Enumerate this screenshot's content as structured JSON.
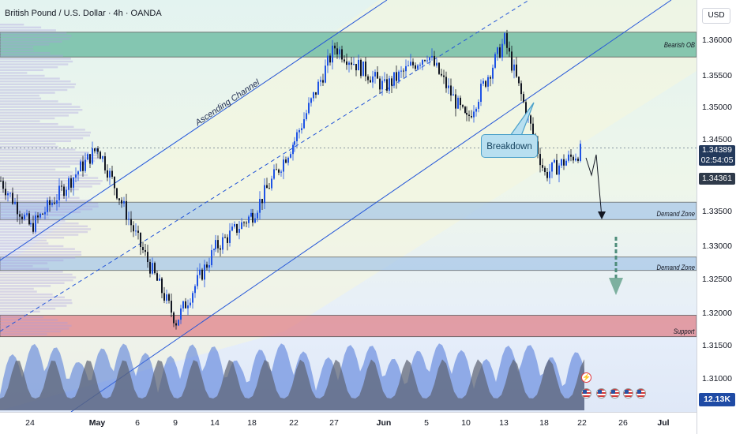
{
  "header": {
    "title": "British Pound / U.S. Dollar · 4h · OANDA"
  },
  "price_scale": {
    "currency": "USD",
    "ticks": [
      "1.36000",
      "1.35500",
      "1.35000",
      "1.34500",
      "1.33500",
      "1.33000",
      "1.32500",
      "1.32000",
      "1.31500",
      "1.31000"
    ],
    "current_price": "1.34389",
    "countdown": "02:54:05",
    "close_price": "1.34361",
    "volume_value": "12.13K"
  },
  "time_scale": {
    "labels": [
      {
        "text": "24",
        "strong": false
      },
      {
        "text": "May",
        "strong": true
      },
      {
        "text": "6",
        "strong": false
      },
      {
        "text": "9",
        "strong": false
      },
      {
        "text": "14",
        "strong": false
      },
      {
        "text": "18",
        "strong": false
      },
      {
        "text": "22",
        "strong": false
      },
      {
        "text": "27",
        "strong": false
      },
      {
        "text": "Jun",
        "strong": true
      },
      {
        "text": "5",
        "strong": false
      },
      {
        "text": "10",
        "strong": false
      },
      {
        "text": "13",
        "strong": false
      },
      {
        "text": "18",
        "strong": false
      },
      {
        "text": "22",
        "strong": false
      },
      {
        "text": "26",
        "strong": false
      },
      {
        "text": "Jul",
        "strong": true
      }
    ]
  },
  "annotations": {
    "channel": "Ascending Channel",
    "breakdown": "Breakdown",
    "zones": [
      {
        "label": "Bearish OB",
        "color": "#5fb59a"
      },
      {
        "label": "Demand Zone",
        "color": "#9fc2e8"
      },
      {
        "label": "Demand Zone",
        "color": "#9fc2e8"
      },
      {
        "label": "Support",
        "color": "#e07e86"
      }
    ]
  },
  "chart_data": {
    "type": "line",
    "title": "British Pound / U.S. Dollar · 4h · OANDA",
    "x": [
      "24",
      "May",
      "6",
      "9",
      "14",
      "18",
      "22",
      "27",
      "Jun",
      "5",
      "10",
      "13",
      "18",
      "22"
    ],
    "series": [
      {
        "values": [
          1.332,
          1.344,
          1.33,
          1.318,
          1.329,
          1.334,
          1.345,
          1.359,
          1.353,
          1.358,
          1.348,
          1.36,
          1.34,
          1.3436
        ]
      }
    ],
    "ylim": [
      1.306,
      1.364
    ],
    "zones": [
      {
        "name": "Bearish OB",
        "from": 1.3575,
        "to": 1.3612
      },
      {
        "name": "Demand Zone",
        "from": 1.3332,
        "to": 1.3358
      },
      {
        "name": "Demand Zone",
        "from": 1.3256,
        "to": 1.3276
      },
      {
        "name": "Support",
        "from": 1.3157,
        "to": 1.3189
      }
    ],
    "colors": {
      "up": "#1e53e5",
      "down": "#131722",
      "volume": "#4a74d8",
      "volume_alt": "#5b6170"
    }
  }
}
